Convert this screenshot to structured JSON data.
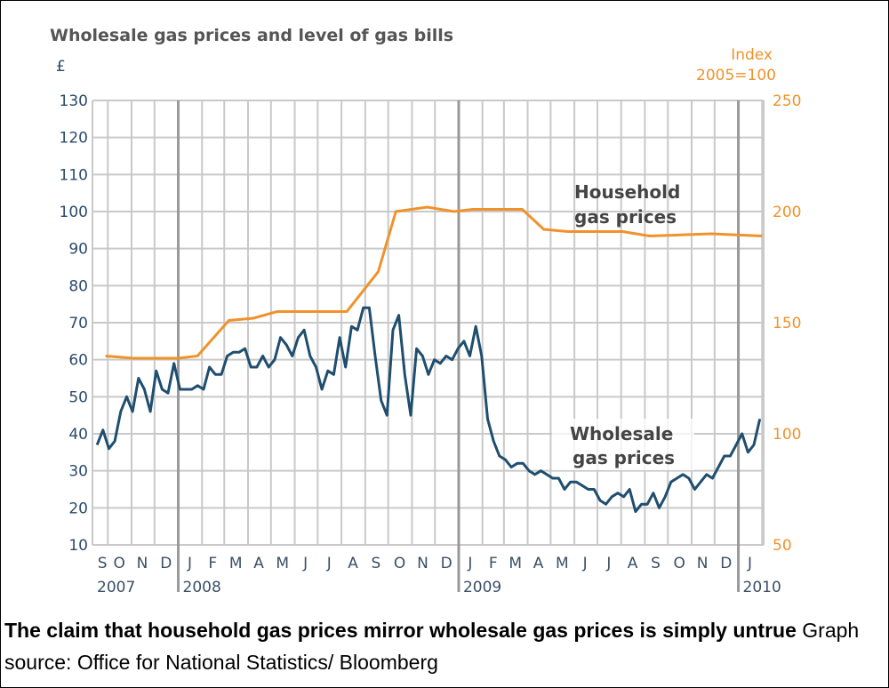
{
  "caption": {
    "headline": "The claim that household gas prices mirror wholesale gas prices is simply untrue",
    "source": " Graph source: Office for National Statistics/ Bloomberg"
  },
  "chart_data": {
    "type": "line",
    "title": "Wholesale gas prices and level of gas bills",
    "left_axis": {
      "label": "£",
      "ylim": [
        10,
        130
      ],
      "ticks": [
        "130",
        "120",
        "110",
        "100",
        "90",
        "80",
        "70",
        "60",
        "50",
        "40",
        "30",
        "20",
        "10"
      ]
    },
    "right_axis": {
      "label_line1": "Index",
      "label_line2": "2005=100",
      "ylim": [
        50,
        250
      ],
      "ticks": [
        "250",
        "200",
        "150",
        "100",
        "50"
      ]
    },
    "xlim": [
      "2007-09-11",
      "2010-02-03"
    ],
    "month_labels": [
      {
        "t": "S",
        "d": "2007-09-24"
      },
      {
        "t": "O",
        "d": "2007-10-16"
      },
      {
        "t": "N",
        "d": "2007-11-15"
      },
      {
        "t": "D",
        "d": "2007-12-16"
      },
      {
        "t": "J",
        "d": "2008-01-16"
      },
      {
        "t": "F",
        "d": "2008-02-15"
      },
      {
        "t": "M",
        "d": "2008-03-16"
      },
      {
        "t": "A",
        "d": "2008-04-15"
      },
      {
        "t": "M",
        "d": "2008-05-16"
      },
      {
        "t": "J",
        "d": "2008-06-15"
      },
      {
        "t": "J",
        "d": "2008-07-16"
      },
      {
        "t": "A",
        "d": "2008-08-16"
      },
      {
        "t": "S",
        "d": "2008-09-15"
      },
      {
        "t": "O",
        "d": "2008-10-16"
      },
      {
        "t": "N",
        "d": "2008-11-15"
      },
      {
        "t": "D",
        "d": "2008-12-16"
      },
      {
        "t": "J",
        "d": "2009-01-16"
      },
      {
        "t": "F",
        "d": "2009-02-15"
      },
      {
        "t": "M",
        "d": "2009-03-16"
      },
      {
        "t": "A",
        "d": "2009-04-15"
      },
      {
        "t": "M",
        "d": "2009-05-16"
      },
      {
        "t": "J",
        "d": "2009-06-15"
      },
      {
        "t": "J",
        "d": "2009-07-16"
      },
      {
        "t": "A",
        "d": "2009-08-16"
      },
      {
        "t": "S",
        "d": "2009-09-15"
      },
      {
        "t": "O",
        "d": "2009-10-16"
      },
      {
        "t": "N",
        "d": "2009-11-15"
      },
      {
        "t": "D",
        "d": "2009-12-16"
      },
      {
        "t": "J",
        "d": "2010-01-16"
      }
    ],
    "year_labels": [
      {
        "t": "2007",
        "d": "2007-09-11"
      },
      {
        "t": "2008",
        "d": "2008-01-01"
      },
      {
        "t": "2009",
        "d": "2009-01-01"
      },
      {
        "t": "2010",
        "d": "2010-01-01"
      }
    ],
    "grid": true,
    "series": [
      {
        "name": "Wholesale gas prices",
        "axis": "left",
        "color": "#1f4e6f",
        "x_range": [
          "2007-09-17",
          "2010-01-29"
        ],
        "values": [
          37,
          41,
          36,
          38,
          46,
          50,
          46,
          55,
          52,
          46,
          57,
          52,
          51,
          59,
          52,
          52,
          52,
          53,
          52,
          58,
          56,
          56,
          61,
          62,
          62,
          63,
          58,
          58,
          61,
          58,
          60,
          66,
          64,
          61,
          66,
          68,
          61,
          58,
          52,
          57,
          56,
          66,
          58,
          69,
          68,
          74,
          74,
          61,
          49,
          45,
          68,
          72,
          56,
          45,
          63,
          61,
          56,
          60,
          59,
          61,
          60,
          63,
          65,
          61,
          69,
          61,
          44,
          38,
          34,
          33,
          31,
          32,
          32,
          30,
          29,
          30,
          29,
          28,
          28,
          25,
          27,
          27,
          26,
          25,
          25,
          22,
          21,
          23,
          24,
          23,
          25,
          19,
          21,
          21,
          24,
          20,
          23,
          27,
          28,
          29,
          28,
          25,
          27,
          29,
          28,
          31,
          34,
          34,
          37,
          40,
          35,
          37,
          44
        ]
      },
      {
        "name": "Household gas prices",
        "axis": "right",
        "color": "#f0922b",
        "points": [
          [
            "2007-09-28",
            135
          ],
          [
            "2007-11-03",
            134
          ],
          [
            "2008-01-01",
            134
          ],
          [
            "2008-01-26",
            135
          ],
          [
            "2008-03-07",
            151
          ],
          [
            "2008-04-08",
            152
          ],
          [
            "2008-05-09",
            155
          ],
          [
            "2008-08-08",
            155
          ],
          [
            "2008-09-18",
            173
          ],
          [
            "2008-10-11",
            200
          ],
          [
            "2008-11-21",
            202
          ],
          [
            "2008-12-26",
            200
          ],
          [
            "2009-01-19",
            201
          ],
          [
            "2009-03-25",
            201
          ],
          [
            "2009-04-22",
            192
          ],
          [
            "2009-05-24",
            191
          ],
          [
            "2009-08-03",
            191
          ],
          [
            "2009-09-07",
            189
          ],
          [
            "2009-11-27",
            190
          ],
          [
            "2010-02-01",
            189
          ]
        ]
      }
    ],
    "annotations": {
      "household_line1": "Household",
      "household_line2": "gas prices",
      "wholesale_line1": "Wholesale",
      "wholesale_line2": "gas prices"
    }
  }
}
